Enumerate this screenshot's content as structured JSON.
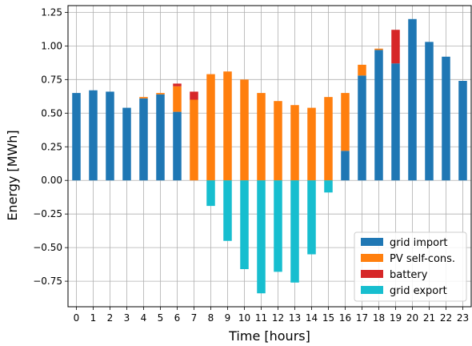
{
  "chart_data": {
    "type": "bar",
    "stacked": true,
    "xlabel": "Time [hours]",
    "ylabel": "Energy [MWh]",
    "categories": [
      "0",
      "1",
      "2",
      "3",
      "4",
      "5",
      "6",
      "7",
      "8",
      "9",
      "10",
      "11",
      "12",
      "13",
      "14",
      "15",
      "16",
      "17",
      "18",
      "19",
      "20",
      "21",
      "22",
      "23"
    ],
    "ylim": [
      -0.94,
      1.3
    ],
    "yticks": [
      -0.75,
      -0.5,
      -0.25,
      0.0,
      0.25,
      0.5,
      0.75,
      1.0,
      1.25
    ],
    "ytick_labels": [
      "−0.75",
      "−0.50",
      "−0.25",
      "0.00",
      "0.25",
      "0.50",
      "0.75",
      "1.00",
      "1.25"
    ],
    "grid": true,
    "legend_position": "lower-right",
    "series": [
      {
        "name": "grid import",
        "color": "#1f77b4",
        "values": [
          0.65,
          0.67,
          0.66,
          0.54,
          0.61,
          0.64,
          0.51,
          0.0,
          0.0,
          0.0,
          0.0,
          0.0,
          0.0,
          0.0,
          0.0,
          0.0,
          0.22,
          0.78,
          0.97,
          0.87,
          1.2,
          1.03,
          0.92,
          0.74
        ]
      },
      {
        "name": "PV self-cons.",
        "color": "#ff7f0e",
        "values": [
          0.0,
          0.0,
          0.0,
          0.0,
          0.01,
          0.01,
          0.19,
          0.6,
          0.79,
          0.81,
          0.75,
          0.65,
          0.59,
          0.56,
          0.54,
          0.62,
          0.43,
          0.08,
          0.01,
          0.0,
          0.0,
          0.0,
          0.0,
          0.0
        ]
      },
      {
        "name": "battery",
        "color": "#d62728",
        "values": [
          0.0,
          0.0,
          0.0,
          0.0,
          0.0,
          0.0,
          0.02,
          0.06,
          0.0,
          0.0,
          0.0,
          0.0,
          0.0,
          0.0,
          0.0,
          0.0,
          0.0,
          0.0,
          0.0,
          0.25,
          0.0,
          0.0,
          0.0,
          0.0
        ]
      },
      {
        "name": "grid export",
        "color": "#17becf",
        "values": [
          0.0,
          0.0,
          0.0,
          0.0,
          0.0,
          0.0,
          0.0,
          0.0,
          -0.19,
          -0.45,
          -0.66,
          -0.84,
          -0.68,
          -0.76,
          -0.55,
          -0.09,
          0.0,
          0.0,
          0.0,
          0.0,
          0.0,
          0.0,
          0.0,
          0.0
        ]
      }
    ]
  }
}
